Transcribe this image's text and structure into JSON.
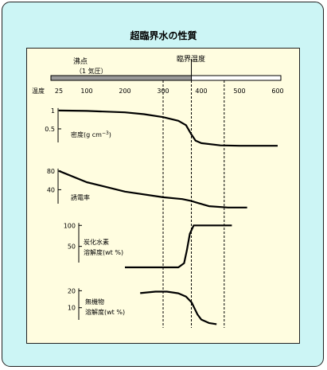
{
  "title": "超臨界水の性質",
  "top_axis": {
    "label": "温度",
    "ticks": [
      25,
      100,
      200,
      300,
      400,
      500,
      600
    ],
    "boiling_point_label": "沸点",
    "boiling_point_note": "（1 気圧）",
    "critical_label": "臨界温度",
    "critical_temperature": 374,
    "guide_temperatures": [
      300,
      374,
      460
    ]
  },
  "colors": {
    "frame_bg": "#ccf5f5",
    "panel_bg": "#fffde0",
    "line": "#000000",
    "bar_fill": "#999999"
  },
  "chart_data": [
    {
      "type": "line",
      "title": "",
      "series_label": "密度(g cm",
      "series_label_sup": "−3",
      "series_label_tail": ")",
      "yticks": [
        0.5,
        1.0
      ],
      "ylim": [
        0,
        1.15
      ],
      "x": [
        25,
        100,
        200,
        250,
        300,
        340,
        360,
        374,
        385,
        400,
        450,
        500,
        600
      ],
      "values": [
        1.0,
        0.99,
        0.95,
        0.9,
        0.82,
        0.72,
        0.6,
        0.35,
        0.18,
        0.11,
        0.05,
        0.04,
        0.04
      ]
    },
    {
      "type": "line",
      "title": "",
      "series_label": "誘電率",
      "yticks": [
        40,
        80
      ],
      "ylim": [
        0,
        95
      ],
      "x": [
        25,
        100,
        200,
        300,
        350,
        374,
        390,
        420,
        470,
        520
      ],
      "values": [
        80,
        56,
        36,
        24,
        20,
        16,
        12,
        5,
        2,
        2
      ]
    },
    {
      "type": "line",
      "title": "",
      "series_label": "炭化水素",
      "series_label_line2": "溶解度(wt %)",
      "yticks": [
        50,
        100
      ],
      "ylim": [
        0,
        110
      ],
      "x": [
        200,
        300,
        340,
        355,
        362,
        370,
        380,
        420,
        480
      ],
      "values": [
        0,
        0,
        0,
        10,
        40,
        80,
        100,
        100,
        100
      ]
    },
    {
      "type": "line",
      "title": "",
      "series_label": "無機物",
      "series_label_line2": "溶解度(wt %)",
      "yticks": [
        10,
        20
      ],
      "ylim": [
        0,
        23
      ],
      "x": [
        240,
        280,
        310,
        340,
        360,
        375,
        390,
        400,
        420,
        440
      ],
      "values": [
        18.6,
        19.5,
        19.5,
        18.5,
        16.5,
        13,
        6,
        3,
        1,
        0.3
      ]
    }
  ]
}
